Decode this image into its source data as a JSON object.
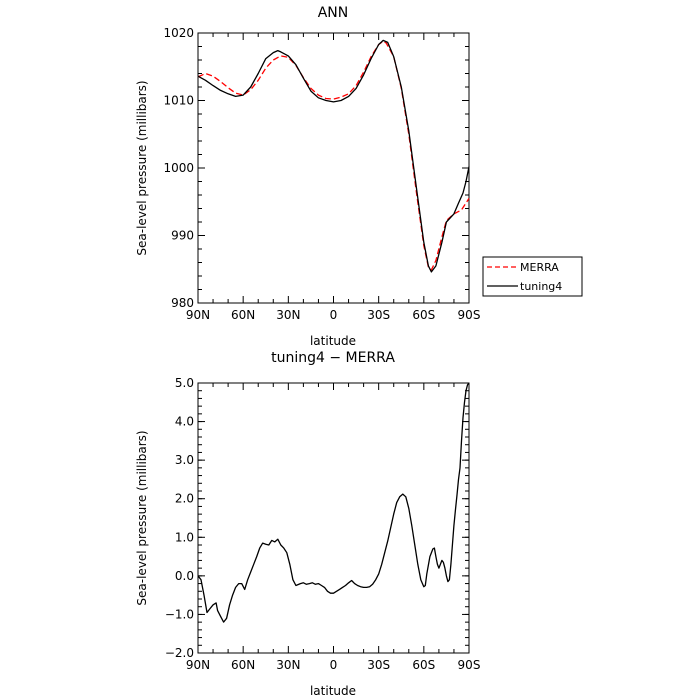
{
  "chart_data": [
    {
      "type": "line",
      "title": "ANN",
      "xlabel": "latitude",
      "ylabel": "Sea-level pressure (millibars)",
      "xlim": [
        90,
        -90
      ],
      "ylim": [
        980,
        1020
      ],
      "x_ticks": [
        90,
        60,
        30,
        0,
        -30,
        -60,
        -90
      ],
      "x_tick_labels": [
        "90N",
        "60N",
        "30N",
        "0",
        "30S",
        "60S",
        "90S"
      ],
      "y_ticks": [
        980,
        990,
        1000,
        1010,
        1020
      ],
      "y_tick_labels": [
        "980",
        "990",
        "1000",
        "1010",
        "1020"
      ],
      "legend": "right",
      "series": [
        {
          "name": "MERRA",
          "color": "#ff0000",
          "dash": "dashed",
          "points": [
            [
              90,
              1013.5
            ],
            [
              85,
              1014
            ],
            [
              80,
              1013.6
            ],
            [
              75,
              1012.8
            ],
            [
              70,
              1011.9
            ],
            [
              65,
              1011.1
            ],
            [
              60,
              1010.8
            ],
            [
              55,
              1011.6
            ],
            [
              50,
              1013
            ],
            [
              45,
              1014.8
            ],
            [
              40,
              1016
            ],
            [
              35,
              1016.6
            ],
            [
              30,
              1016.4
            ],
            [
              25,
              1015.2
            ],
            [
              20,
              1013.4
            ],
            [
              15,
              1011.8
            ],
            [
              10,
              1010.8
            ],
            [
              5,
              1010.3
            ],
            [
              0,
              1010.2
            ],
            [
              -5,
              1010.5
            ],
            [
              -10,
              1011
            ],
            [
              -15,
              1012.2
            ],
            [
              -20,
              1014.2
            ],
            [
              -25,
              1016.5
            ],
            [
              -30,
              1018.3
            ],
            [
              -33,
              1018.8
            ],
            [
              -35,
              1018.5
            ],
            [
              -40,
              1016.5
            ],
            [
              -45,
              1011.8
            ],
            [
              -50,
              1005
            ],
            [
              -55,
              996.5
            ],
            [
              -60,
              988.5
            ],
            [
              -63,
              985.3
            ],
            [
              -65,
              984.9
            ],
            [
              -68,
              986.3
            ],
            [
              -72,
              989.8
            ],
            [
              -75,
              992.2
            ],
            [
              -80,
              993.2
            ],
            [
              -85,
              993.8
            ],
            [
              -90,
              995.5
            ]
          ]
        },
        {
          "name": "tuning4",
          "color": "#000000",
          "dash": "solid",
          "points": [
            [
              90,
              1013.6
            ],
            [
              85,
              1013
            ],
            [
              80,
              1012.2
            ],
            [
              75,
              1011.5
            ],
            [
              70,
              1011
            ],
            [
              65,
              1010.6
            ],
            [
              60,
              1010.8
            ],
            [
              55,
              1012
            ],
            [
              50,
              1014
            ],
            [
              45,
              1016.2
            ],
            [
              40,
              1017.1
            ],
            [
              37,
              1017.4
            ],
            [
              35,
              1017.2
            ],
            [
              30,
              1016.6
            ],
            [
              25,
              1015.3
            ],
            [
              20,
              1013.3
            ],
            [
              15,
              1011.4
            ],
            [
              10,
              1010.4
            ],
            [
              5,
              1010
            ],
            [
              0,
              1009.8
            ],
            [
              -5,
              1010
            ],
            [
              -10,
              1010.6
            ],
            [
              -15,
              1011.8
            ],
            [
              -20,
              1013.8
            ],
            [
              -25,
              1016.2
            ],
            [
              -30,
              1018.3
            ],
            [
              -33,
              1018.9
            ],
            [
              -36,
              1018.6
            ],
            [
              -40,
              1016.5
            ],
            [
              -45,
              1012
            ],
            [
              -50,
              1005.5
            ],
            [
              -55,
              997.2
            ],
            [
              -60,
              989
            ],
            [
              -63,
              985.5
            ],
            [
              -65,
              984.6
            ],
            [
              -68,
              985.5
            ],
            [
              -72,
              989
            ],
            [
              -75,
              992
            ],
            [
              -80,
              993.2
            ],
            [
              -83,
              994.8
            ],
            [
              -86,
              996.3
            ],
            [
              -88,
              998
            ],
            [
              -90,
              1000.2
            ]
          ]
        }
      ]
    },
    {
      "type": "line",
      "title": "tuning4 − MERRA",
      "xlabel": "latitude",
      "ylabel": "Sea-level pressure (millibars)",
      "xlim": [
        90,
        -90
      ],
      "ylim": [
        -2.0,
        5.0
      ],
      "x_ticks": [
        90,
        60,
        30,
        0,
        -30,
        -60,
        -90
      ],
      "x_tick_labels": [
        "90N",
        "60N",
        "30N",
        "0",
        "30S",
        "60S",
        "90S"
      ],
      "y_ticks": [
        -2,
        -1,
        0,
        1,
        2,
        3,
        4,
        5
      ],
      "y_tick_labels": [
        "−2.0",
        "−1.0",
        "0.0",
        "1.0",
        "2.0",
        "3.0",
        "4.0",
        "5.0"
      ],
      "series": [
        {
          "color": "#000000",
          "dash": "solid",
          "points": [
            [
              90,
              0
            ],
            [
              88,
              -0.1
            ],
            [
              86,
              -0.5
            ],
            [
              84,
              -0.95
            ],
            [
              82,
              -0.85
            ],
            [
              80,
              -0.75
            ],
            [
              78,
              -0.7
            ],
            [
              77,
              -0.9
            ],
            [
              75,
              -1.05
            ],
            [
              73,
              -1.2
            ],
            [
              71,
              -1.1
            ],
            [
              69,
              -0.75
            ],
            [
              67,
              -0.5
            ],
            [
              65,
              -0.3
            ],
            [
              63,
              -0.2
            ],
            [
              61,
              -0.2
            ],
            [
              59,
              -0.35
            ],
            [
              57,
              -0.1
            ],
            [
              55,
              0.1
            ],
            [
              53,
              0.3
            ],
            [
              51,
              0.5
            ],
            [
              49,
              0.72
            ],
            [
              47,
              0.85
            ],
            [
              45,
              0.82
            ],
            [
              43,
              0.8
            ],
            [
              41,
              0.92
            ],
            [
              39,
              0.88
            ],
            [
              37,
              0.95
            ],
            [
              35,
              0.8
            ],
            [
              33,
              0.72
            ],
            [
              31,
              0.6
            ],
            [
              29,
              0.3
            ],
            [
              27,
              -0.1
            ],
            [
              25,
              -0.25
            ],
            [
              22,
              -0.2
            ],
            [
              20,
              -0.18
            ],
            [
              18,
              -0.22
            ],
            [
              16,
              -0.2
            ],
            [
              14,
              -0.18
            ],
            [
              12,
              -0.22
            ],
            [
              10,
              -0.2
            ],
            [
              8,
              -0.25
            ],
            [
              6,
              -0.3
            ],
            [
              4,
              -0.4
            ],
            [
              2,
              -0.45
            ],
            [
              0,
              -0.45
            ],
            [
              -2,
              -0.4
            ],
            [
              -4,
              -0.35
            ],
            [
              -6,
              -0.3
            ],
            [
              -8,
              -0.25
            ],
            [
              -10,
              -0.18
            ],
            [
              -12,
              -0.12
            ],
            [
              -14,
              -0.2
            ],
            [
              -16,
              -0.25
            ],
            [
              -18,
              -0.28
            ],
            [
              -20,
              -0.3
            ],
            [
              -22,
              -0.3
            ],
            [
              -24,
              -0.28
            ],
            [
              -26,
              -0.22
            ],
            [
              -28,
              -0.1
            ],
            [
              -30,
              0.05
            ],
            [
              -32,
              0.3
            ],
            [
              -34,
              0.6
            ],
            [
              -36,
              0.9
            ],
            [
              -38,
              1.25
            ],
            [
              -40,
              1.6
            ],
            [
              -42,
              1.9
            ],
            [
              -44,
              2.05
            ],
            [
              -46,
              2.12
            ],
            [
              -48,
              2.05
            ],
            [
              -50,
              1.75
            ],
            [
              -52,
              1.3
            ],
            [
              -54,
              0.8
            ],
            [
              -56,
              0.3
            ],
            [
              -58,
              -0.1
            ],
            [
              -60,
              -0.28
            ],
            [
              -61,
              -0.25
            ],
            [
              -62,
              0.05
            ],
            [
              -64,
              0.5
            ],
            [
              -66,
              0.7
            ],
            [
              -67,
              0.72
            ],
            [
              -68,
              0.5
            ],
            [
              -69,
              0.3
            ],
            [
              -70,
              0.2
            ],
            [
              -71,
              0.3
            ],
            [
              -72,
              0.4
            ],
            [
              -73,
              0.35
            ],
            [
              -74,
              0.2
            ],
            [
              -75,
              0
            ],
            [
              -76,
              -0.15
            ],
            [
              -77,
              -0.1
            ],
            [
              -78,
              0.3
            ],
            [
              -79,
              0.8
            ],
            [
              -80,
              1.3
            ],
            [
              -81,
              1.7
            ],
            [
              -82,
              2.1
            ],
            [
              -83,
              2.5
            ],
            [
              -84,
              2.8
            ],
            [
              -85,
              3.5
            ],
            [
              -86,
              4.1
            ],
            [
              -87,
              4.5
            ],
            [
              -88,
              4.8
            ],
            [
              -89,
              4.95
            ],
            [
              -90,
              5.0
            ]
          ]
        }
      ]
    }
  ]
}
